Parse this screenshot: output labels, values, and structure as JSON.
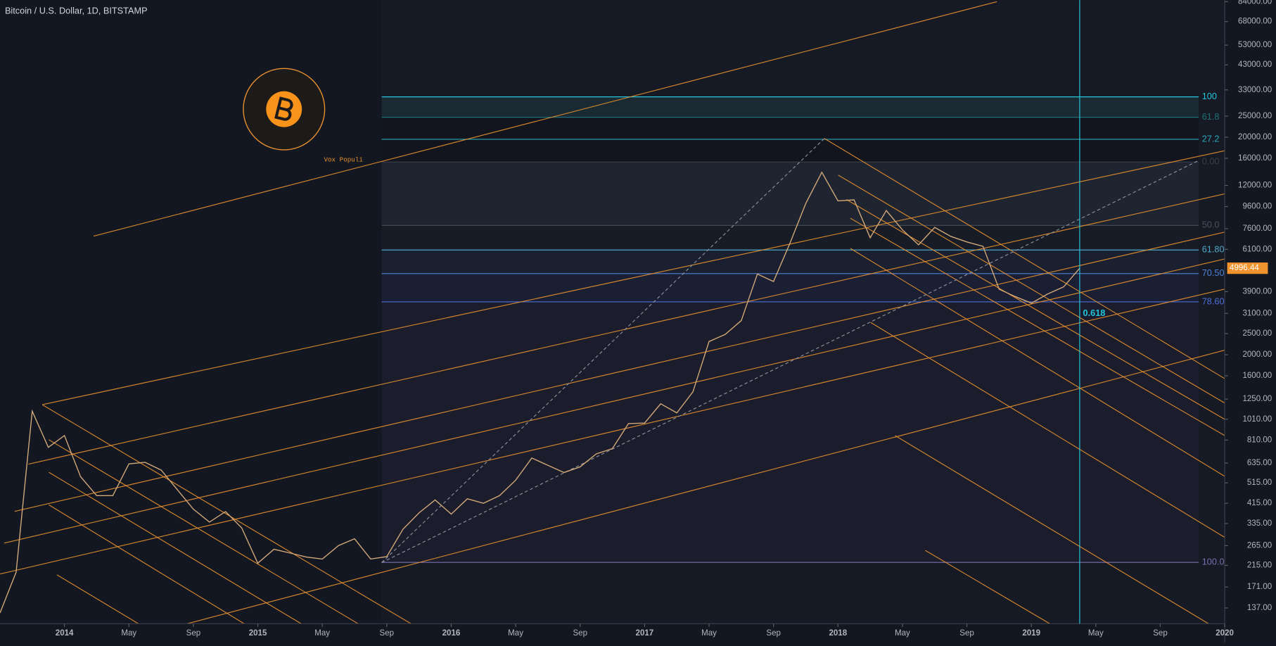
{
  "chart_data": {
    "type": "line",
    "title": "Bitcoin / U.S. Dollar, 1D, BITSTAMP",
    "watermark": "Vox Populi",
    "log_scale": true,
    "color": "#d2a878",
    "x": [
      "2013-09",
      "2013-10",
      "2013-11",
      "2013-12",
      "2014-01",
      "2014-02",
      "2014-03",
      "2014-04",
      "2014-05",
      "2014-06",
      "2014-07",
      "2014-08",
      "2014-09",
      "2014-10",
      "2014-11",
      "2014-12",
      "2015-01",
      "2015-02",
      "2015-03",
      "2015-04",
      "2015-05",
      "2015-06",
      "2015-07",
      "2015-08",
      "2015-09",
      "2015-10",
      "2015-11",
      "2015-12",
      "2016-01",
      "2016-02",
      "2016-03",
      "2016-04",
      "2016-05",
      "2016-06",
      "2016-07",
      "2016-08",
      "2016-09",
      "2016-10",
      "2016-11",
      "2016-12",
      "2017-01",
      "2017-02",
      "2017-03",
      "2017-04",
      "2017-05",
      "2017-06",
      "2017-07",
      "2017-08",
      "2017-09",
      "2017-10",
      "2017-11",
      "2017-12",
      "2018-01",
      "2018-02",
      "2018-03",
      "2018-04",
      "2018-05",
      "2018-06",
      "2018-07",
      "2018-08",
      "2018-09",
      "2018-10",
      "2018-11",
      "2018-12",
      "2019-01",
      "2019-02",
      "2019-03",
      "2019-04"
    ],
    "values": [
      130,
      200,
      1100,
      750,
      850,
      550,
      450,
      450,
      630,
      640,
      590,
      480,
      390,
      340,
      380,
      320,
      220,
      255,
      245,
      235,
      230,
      265,
      285,
      230,
      236,
      315,
      375,
      430,
      370,
      435,
      415,
      450,
      530,
      670,
      620,
      575,
      610,
      700,
      740,
      965,
      970,
      1190,
      1080,
      1350,
      2300,
      2480,
      2870,
      4700,
      4340,
      6450,
      9900,
      13800,
      10200,
      10300,
      6900,
      9200,
      7500,
      6400,
      7700,
      7000,
      6600,
      6300,
      4000,
      3700,
      3450,
      3800,
      4100,
      4996.44
    ],
    "xlim": [
      "2013-09",
      "2020-01"
    ],
    "ylim": [
      116,
      85400
    ],
    "xticks": [
      {
        "value": "2014-01",
        "label": "2014"
      },
      {
        "value": "2014-05",
        "label": "May"
      },
      {
        "value": "2014-09",
        "label": "Sep"
      },
      {
        "value": "2015-01",
        "label": "2015"
      },
      {
        "value": "2015-05",
        "label": "May"
      },
      {
        "value": "2015-09",
        "label": "Sep"
      },
      {
        "value": "2016-01",
        "label": "2016"
      },
      {
        "value": "2016-05",
        "label": "May"
      },
      {
        "value": "2016-09",
        "label": "Sep"
      },
      {
        "value": "2017-01",
        "label": "2017"
      },
      {
        "value": "2017-05",
        "label": "May"
      },
      {
        "value": "2017-09",
        "label": "Sep"
      },
      {
        "value": "2018-01",
        "label": "2018"
      },
      {
        "value": "2018-05",
        "label": "May"
      },
      {
        "value": "2018-09",
        "label": "Sep"
      },
      {
        "value": "2019-01",
        "label": "2019"
      },
      {
        "value": "2019-05",
        "label": "May"
      },
      {
        "value": "2019-09",
        "label": "Sep"
      },
      {
        "value": "2020-01",
        "label": "2020"
      }
    ],
    "yticks": [
      {
        "value": 84000,
        "label": "84000.00"
      },
      {
        "value": 68000,
        "label": "68000.00"
      },
      {
        "value": 53000,
        "label": "53000.00"
      },
      {
        "value": 43000,
        "label": "43000.00"
      },
      {
        "value": 33000,
        "label": "33000.00"
      },
      {
        "value": 25000,
        "label": "25000.00"
      },
      {
        "value": 20000,
        "label": "20000.00"
      },
      {
        "value": 16000,
        "label": "16000.00"
      },
      {
        "value": 12000,
        "label": "12000.00"
      },
      {
        "value": 9600,
        "label": "9600.00"
      },
      {
        "value": 7600,
        "label": "7600.00"
      },
      {
        "value": 6100,
        "label": "6100.00"
      },
      {
        "value": 3900,
        "label": "3900.00"
      },
      {
        "value": 3100,
        "label": "3100.00"
      },
      {
        "value": 2500,
        "label": "2500.00"
      },
      {
        "value": 2000,
        "label": "2000.00"
      },
      {
        "value": 1600,
        "label": "1600.00"
      },
      {
        "value": 1250,
        "label": "1250.00"
      },
      {
        "value": 1010,
        "label": "1010.00"
      },
      {
        "value": 810,
        "label": "810.00"
      },
      {
        "value": 635,
        "label": "635.00"
      },
      {
        "value": 515,
        "label": "515.00"
      },
      {
        "value": 415,
        "label": "415.00"
      },
      {
        "value": 335,
        "label": "335.00"
      },
      {
        "value": 265,
        "label": "265.00"
      },
      {
        "value": 215,
        "label": "215.00"
      },
      {
        "value": 171,
        "label": "171.00"
      },
      {
        "value": 137,
        "label": "137.00"
      }
    ],
    "fib_levels": [
      {
        "label": "100",
        "value": 30660,
        "color": "#22c6da"
      },
      {
        "label": "61.8",
        "value": 24700,
        "color": "#1f6f78"
      },
      {
        "label": "27.2",
        "value": 19560,
        "color": "#2aa7b5"
      },
      {
        "label": "0.00",
        "value": 15390,
        "color": "#3a3f4a"
      },
      {
        "label": "50.0",
        "value": 7860,
        "color": "#4a4f5a"
      },
      {
        "label": "61.80",
        "value": 6060,
        "color": "#4fa8c8"
      },
      {
        "label": "70.50",
        "value": 4720,
        "color": "#4e82d8"
      },
      {
        "label": "78.60",
        "value": 3500,
        "color": "#4e6ed8"
      },
      {
        "label": "100.0",
        "value": 222,
        "color": "#7b6fae"
      }
    ],
    "annotations": [
      "0.618"
    ],
    "vline": "2019-04",
    "vline_color": "#22c6da",
    "last_price": 4996.44,
    "last_price_color": "#f0922d"
  }
}
